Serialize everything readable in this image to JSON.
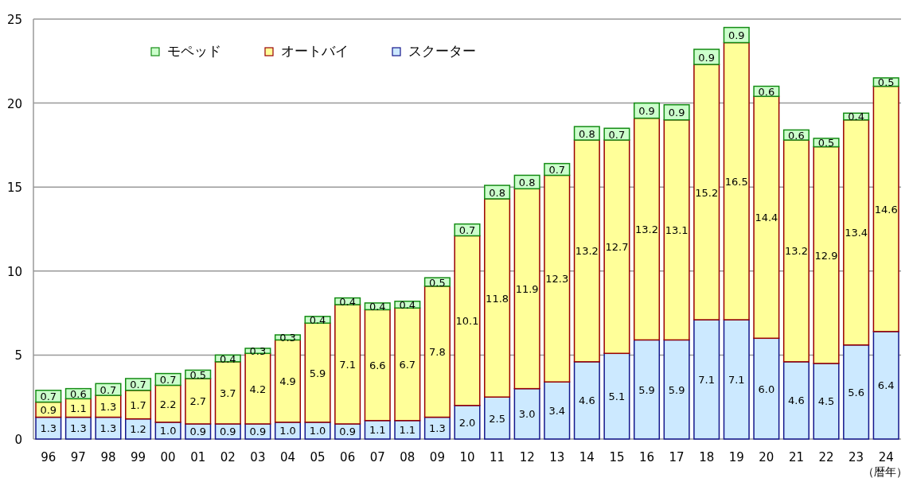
{
  "chart_data": {
    "type": "bar",
    "stacked": true,
    "xlabel": "（暦年）",
    "categories": [
      "96",
      "97",
      "98",
      "99",
      "00",
      "01",
      "02",
      "03",
      "04",
      "05",
      "06",
      "07",
      "08",
      "09",
      "10",
      "11",
      "12",
      "13",
      "14",
      "15",
      "16",
      "17",
      "18",
      "19",
      "20",
      "21",
      "22",
      "23",
      "24"
    ],
    "series": [
      {
        "name": "スクーター",
        "color": "#cce9ff",
        "values": [
          1.3,
          1.3,
          1.3,
          1.2,
          1.0,
          0.9,
          0.9,
          0.9,
          1.0,
          1.0,
          0.9,
          1.1,
          1.1,
          1.3,
          2.0,
          2.5,
          3.0,
          3.4,
          4.6,
          5.1,
          5.9,
          5.9,
          7.1,
          7.1,
          6.0,
          4.6,
          4.5,
          5.6,
          6.4
        ],
        "value_labels": [
          "1.3",
          "1.3",
          "1.3",
          "1.2",
          "1.0",
          "0.9",
          "0.9",
          "0.9",
          "1.0",
          "1.0",
          "0.9",
          "1.1",
          "1.1",
          "1.3",
          "2.0",
          "2.5",
          "3.0",
          "3.4",
          "4.6",
          "5.1",
          "5.9",
          "5.9",
          "7.1",
          "7.1",
          "6.0",
          "4.6",
          "4.5",
          "5.6",
          "6.4"
        ]
      },
      {
        "name": "オートバイ",
        "color": "#ffff99",
        "values": [
          0.9,
          1.1,
          1.3,
          1.7,
          2.2,
          2.7,
          3.7,
          4.2,
          4.9,
          5.9,
          7.1,
          6.6,
          6.7,
          7.8,
          10.1,
          11.8,
          11.9,
          12.3,
          13.2,
          12.7,
          13.2,
          13.1,
          15.2,
          16.5,
          14.4,
          13.2,
          12.9,
          13.4,
          14.6
        ],
        "value_labels": [
          "0.9",
          "1.1",
          "1.3",
          "1.7",
          "2.2",
          "2.7",
          "3.7",
          "4.2",
          "4.9",
          "5.9",
          "7.1",
          "6.6",
          "6.7",
          "7.8",
          "10.1",
          "11.8",
          "11.9",
          "12.3",
          "13.2",
          "12.7",
          "13.2",
          "13.1",
          "15.2",
          "16.5",
          "14.4",
          "13.2",
          "12.9",
          "13.4",
          "14.6"
        ]
      },
      {
        "name": "モペッド",
        "color": "#ccffcc",
        "values": [
          0.7,
          0.6,
          0.7,
          0.7,
          0.7,
          0.5,
          0.4,
          0.3,
          0.3,
          0.4,
          0.4,
          0.4,
          0.4,
          0.5,
          0.7,
          0.8,
          0.8,
          0.7,
          0.8,
          0.7,
          0.9,
          0.9,
          0.9,
          0.9,
          0.6,
          0.6,
          0.5,
          0.4,
          0.5
        ],
        "value_labels": [
          "0.7",
          "0.6",
          "0.7",
          "0.7",
          "0.7",
          "0.5",
          "0.4",
          "0.3",
          "0.3",
          "0.4",
          "0.4",
          "0.4",
          "0.4",
          "0.5",
          "0.7",
          "0.8",
          "0.8",
          "0.7",
          "0.8",
          "0.7",
          "0.9",
          "0.9",
          "0.9",
          "0.9",
          "0.6",
          "0.6",
          "0.5",
          "0.4",
          "0.5"
        ]
      }
    ],
    "ylim": [
      0,
      25
    ],
    "yticks": [
      0,
      5,
      10,
      15,
      20,
      25
    ],
    "grid": "y",
    "legend": "top left"
  }
}
